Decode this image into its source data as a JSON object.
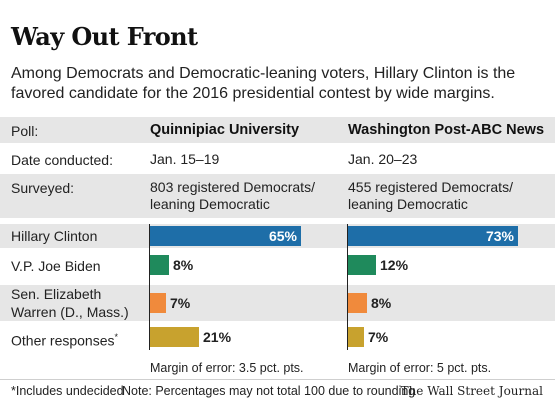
{
  "header": {
    "title": "Way Out Front",
    "subtitle_line1": "Among Democrats and Democratic-leaning voters, Hillary Clinton is the",
    "subtitle_line2": "favored candidate for the 2016 presidential contest by wide margins."
  },
  "table": {
    "poll_label": "Poll:",
    "date_label": "Date conducted:",
    "surveyed_label": "Surveyed:",
    "polls": [
      {
        "name": "Quinnipiac University",
        "date": "Jan. 15–19",
        "surveyed_line1": "803 registered Democrats/",
        "surveyed_line2": "leaning Democratic",
        "margin": "Margin of error: 3.5 pct. pts."
      },
      {
        "name": "Washington Post-ABC News",
        "date": "Jan. 20–23",
        "surveyed_line1": "455 registered Democrats/",
        "surveyed_line2": "leaning Democratic",
        "margin": "Margin of error: 5 pct. pts."
      }
    ]
  },
  "candidates": [
    {
      "label": "Hillary Clinton",
      "color": "#1e6ea8"
    },
    {
      "label": "V.P. Joe Biden",
      "color": "#1f8a5c"
    },
    {
      "label_line1": "Sen. Elizabeth",
      "label_line2": "Warren (D., Mass.)",
      "color": "#f08a3c"
    },
    {
      "label": "Other responses",
      "label_sup": "*",
      "color": "#c8a22e"
    }
  ],
  "chart_data": {
    "type": "bar",
    "categories": [
      "Hillary Clinton",
      "V.P. Joe Biden",
      "Sen. Elizabeth Warren (D., Mass.)",
      "Other responses*"
    ],
    "series": [
      {
        "name": "Quinnipiac University",
        "values": [
          65,
          8,
          7,
          21
        ],
        "labels": [
          "65%",
          "8%",
          "7%",
          "21%"
        ]
      },
      {
        "name": "Washington Post-ABC News",
        "values": [
          73,
          12,
          8,
          7
        ],
        "labels": [
          "73%",
          "12%",
          "8%",
          "7%"
        ]
      }
    ]
  },
  "footer": {
    "footnote": "*Includes undecided",
    "note": "Note: Percentages may not total 100 due to rounding",
    "source": "The Wall Street Journal"
  }
}
